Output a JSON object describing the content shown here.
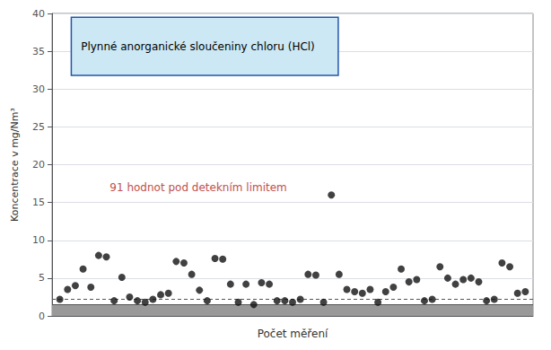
{
  "chart_data": {
    "type": "scatter",
    "xlabel": "Počet měření",
    "ylabel": "Koncentrace v mg/Nm³",
    "x": [
      1,
      2,
      3,
      4,
      5,
      6,
      7,
      8,
      9,
      10,
      11,
      12,
      13,
      14,
      15,
      16,
      17,
      18,
      19,
      20,
      21,
      22,
      23,
      24,
      25,
      26,
      27,
      28,
      29,
      30,
      31,
      32,
      33,
      34,
      35,
      36,
      37,
      38,
      39,
      40,
      41,
      42,
      43,
      44,
      45,
      46,
      47,
      48,
      49,
      50,
      51,
      52,
      53,
      54,
      55,
      56,
      57,
      58,
      59,
      60,
      61
    ],
    "values": [
      2.2,
      3.5,
      4.0,
      6.2,
      3.8,
      8.0,
      7.8,
      2.0,
      5.1,
      2.5,
      2.0,
      1.8,
      2.2,
      2.8,
      3.0,
      7.2,
      7.0,
      5.5,
      3.4,
      2.0,
      7.6,
      7.5,
      4.2,
      1.8,
      4.2,
      1.5,
      4.4,
      4.2,
      2.0,
      2.0,
      1.8,
      2.2,
      5.5,
      5.4,
      1.8,
      16.0,
      5.5,
      3.5,
      3.2,
      3.0,
      3.5,
      1.8,
      3.2,
      3.8,
      6.2,
      4.5,
      4.8,
      2.0,
      2.2,
      6.5,
      5.0,
      4.2,
      4.8,
      5.0,
      4.5,
      2.0,
      2.2,
      7.0,
      6.5,
      3.0,
      3.2
    ],
    "color": "#111111",
    "marker": "circle",
    "xlim": [
      0,
      62
    ],
    "ylim": [
      0,
      40
    ],
    "yticks": [
      0,
      5,
      10,
      15,
      20,
      25,
      30,
      35,
      40
    ],
    "tick_labels": "y",
    "grid": true,
    "shaded_band": {
      "from": 0,
      "to": 1.5,
      "color": "#999999"
    },
    "reference_lines": [
      {
        "y": 1.5,
        "line_style": "solid"
      },
      {
        "y": 2.2,
        "line_style": "dashed"
      }
    ],
    "annotations": [
      {
        "text": "91 hodnot pod detekním limitem",
        "y": 17.0,
        "color": "#c0504d"
      }
    ],
    "box": {
      "text": "Plynné anorganické sloučeniny chloru (HCl)",
      "y_low": 31.8,
      "y_high": 39.5,
      "color": "#cce8f4",
      "edge_color": "#2255aa"
    }
  }
}
